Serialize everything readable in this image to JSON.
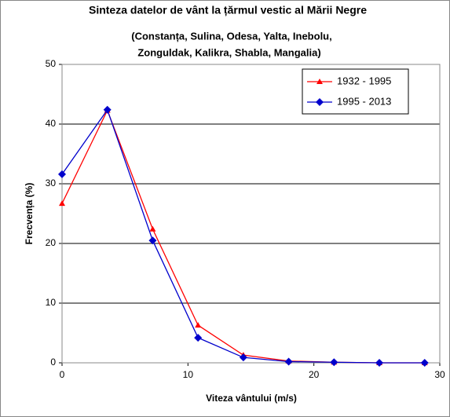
{
  "chart_data": {
    "type": "line",
    "title": "Sinteza datelor de vânt la țărmul vestic al Mării Negre",
    "subtitle": [
      "(Constanța, Sulina, Odesa, Yalta, Inebolu,",
      "Zonguldak, Kalikra, Shabla, Mangalia)"
    ],
    "x_label": "Viteza vântului (m/s)",
    "y_label": "Frecvența (%)",
    "x": [
      0,
      3.6,
      7.2,
      10.8,
      14.4,
      18,
      21.6,
      25.2,
      28.8
    ],
    "series": [
      {
        "name": "1932 - 1995",
        "color": "#ff0000",
        "marker": "triangle",
        "values": [
          26.7,
          42.3,
          22.4,
          6.3,
          1.3,
          0.3,
          0.1,
          0,
          0
        ]
      },
      {
        "name": "1995 - 2013",
        "color": "#0000cc",
        "marker": "diamond",
        "values": [
          31.6,
          42.4,
          20.5,
          4.2,
          0.9,
          0.2,
          0.1,
          0,
          0
        ]
      }
    ],
    "xlim": [
      0,
      30
    ],
    "xticks": [
      0,
      10,
      20,
      30
    ],
    "ylim": [
      0,
      50
    ],
    "yticks": [
      0,
      10,
      20,
      30,
      40,
      50
    ],
    "grid": true,
    "legend": "upper right"
  }
}
